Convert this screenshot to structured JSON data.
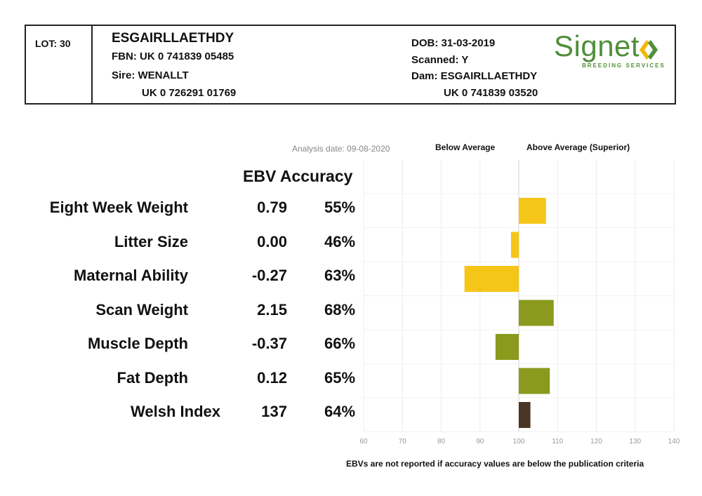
{
  "header": {
    "lot": "LOT: 30",
    "name": "ESGAIRLLAETHDY",
    "fbn": "FBN: UK 0 741839 05485",
    "sire_label": "Sire: WENALLT",
    "sire_id": "UK 0 726291 01769",
    "dob": "DOB: 31-03-2019",
    "scanned": "Scanned: Y",
    "dam_label": "Dam: ESGAIRLLAETHDY",
    "dam_id": "UK 0 741839 03520",
    "logo_word": "Signet",
    "logo_sub": "BREEDING SERVICES",
    "logo_colors": {
      "green": "#4f8f3a",
      "yellow": "#f2b705"
    }
  },
  "chart_data": {
    "type": "bar",
    "orientation": "horizontal",
    "analysis_date": "Analysis date: 09-08-2020",
    "legend_below": "Below Average",
    "legend_above": "Above Average (Superior)",
    "column_heading": "EBV Accuracy",
    "baseline": 100,
    "xlim": [
      60,
      140
    ],
    "xticks": [
      60,
      70,
      80,
      90,
      100,
      110,
      120,
      130,
      140
    ],
    "grid": true,
    "rows": [
      {
        "trait": "Eight Week Weight",
        "ebv": "0.79",
        "accuracy": "55%",
        "index_value": 107,
        "color": "#f5c518"
      },
      {
        "trait": "Litter Size",
        "ebv": "0.00",
        "accuracy": "46%",
        "index_value": 98,
        "color": "#f5c518"
      },
      {
        "trait": "Maternal Ability",
        "ebv": "-0.27",
        "accuracy": "63%",
        "index_value": 86,
        "color": "#f5c518"
      },
      {
        "trait": "Scan Weight",
        "ebv": "2.15",
        "accuracy": "68%",
        "index_value": 109,
        "color": "#8a9a1c"
      },
      {
        "trait": "Muscle Depth",
        "ebv": "-0.37",
        "accuracy": "66%",
        "index_value": 94,
        "color": "#8a9a1c"
      },
      {
        "trait": "Fat Depth",
        "ebv": "0.12",
        "accuracy": "65%",
        "index_value": 108,
        "color": "#8a9a1c"
      },
      {
        "trait": "Welsh Index",
        "ebv": "137",
        "accuracy": "64%",
        "index_value": 103,
        "color": "#4a3626"
      }
    ],
    "footnote": "EBVs are not reported if accuracy values are below the publication criteria"
  }
}
